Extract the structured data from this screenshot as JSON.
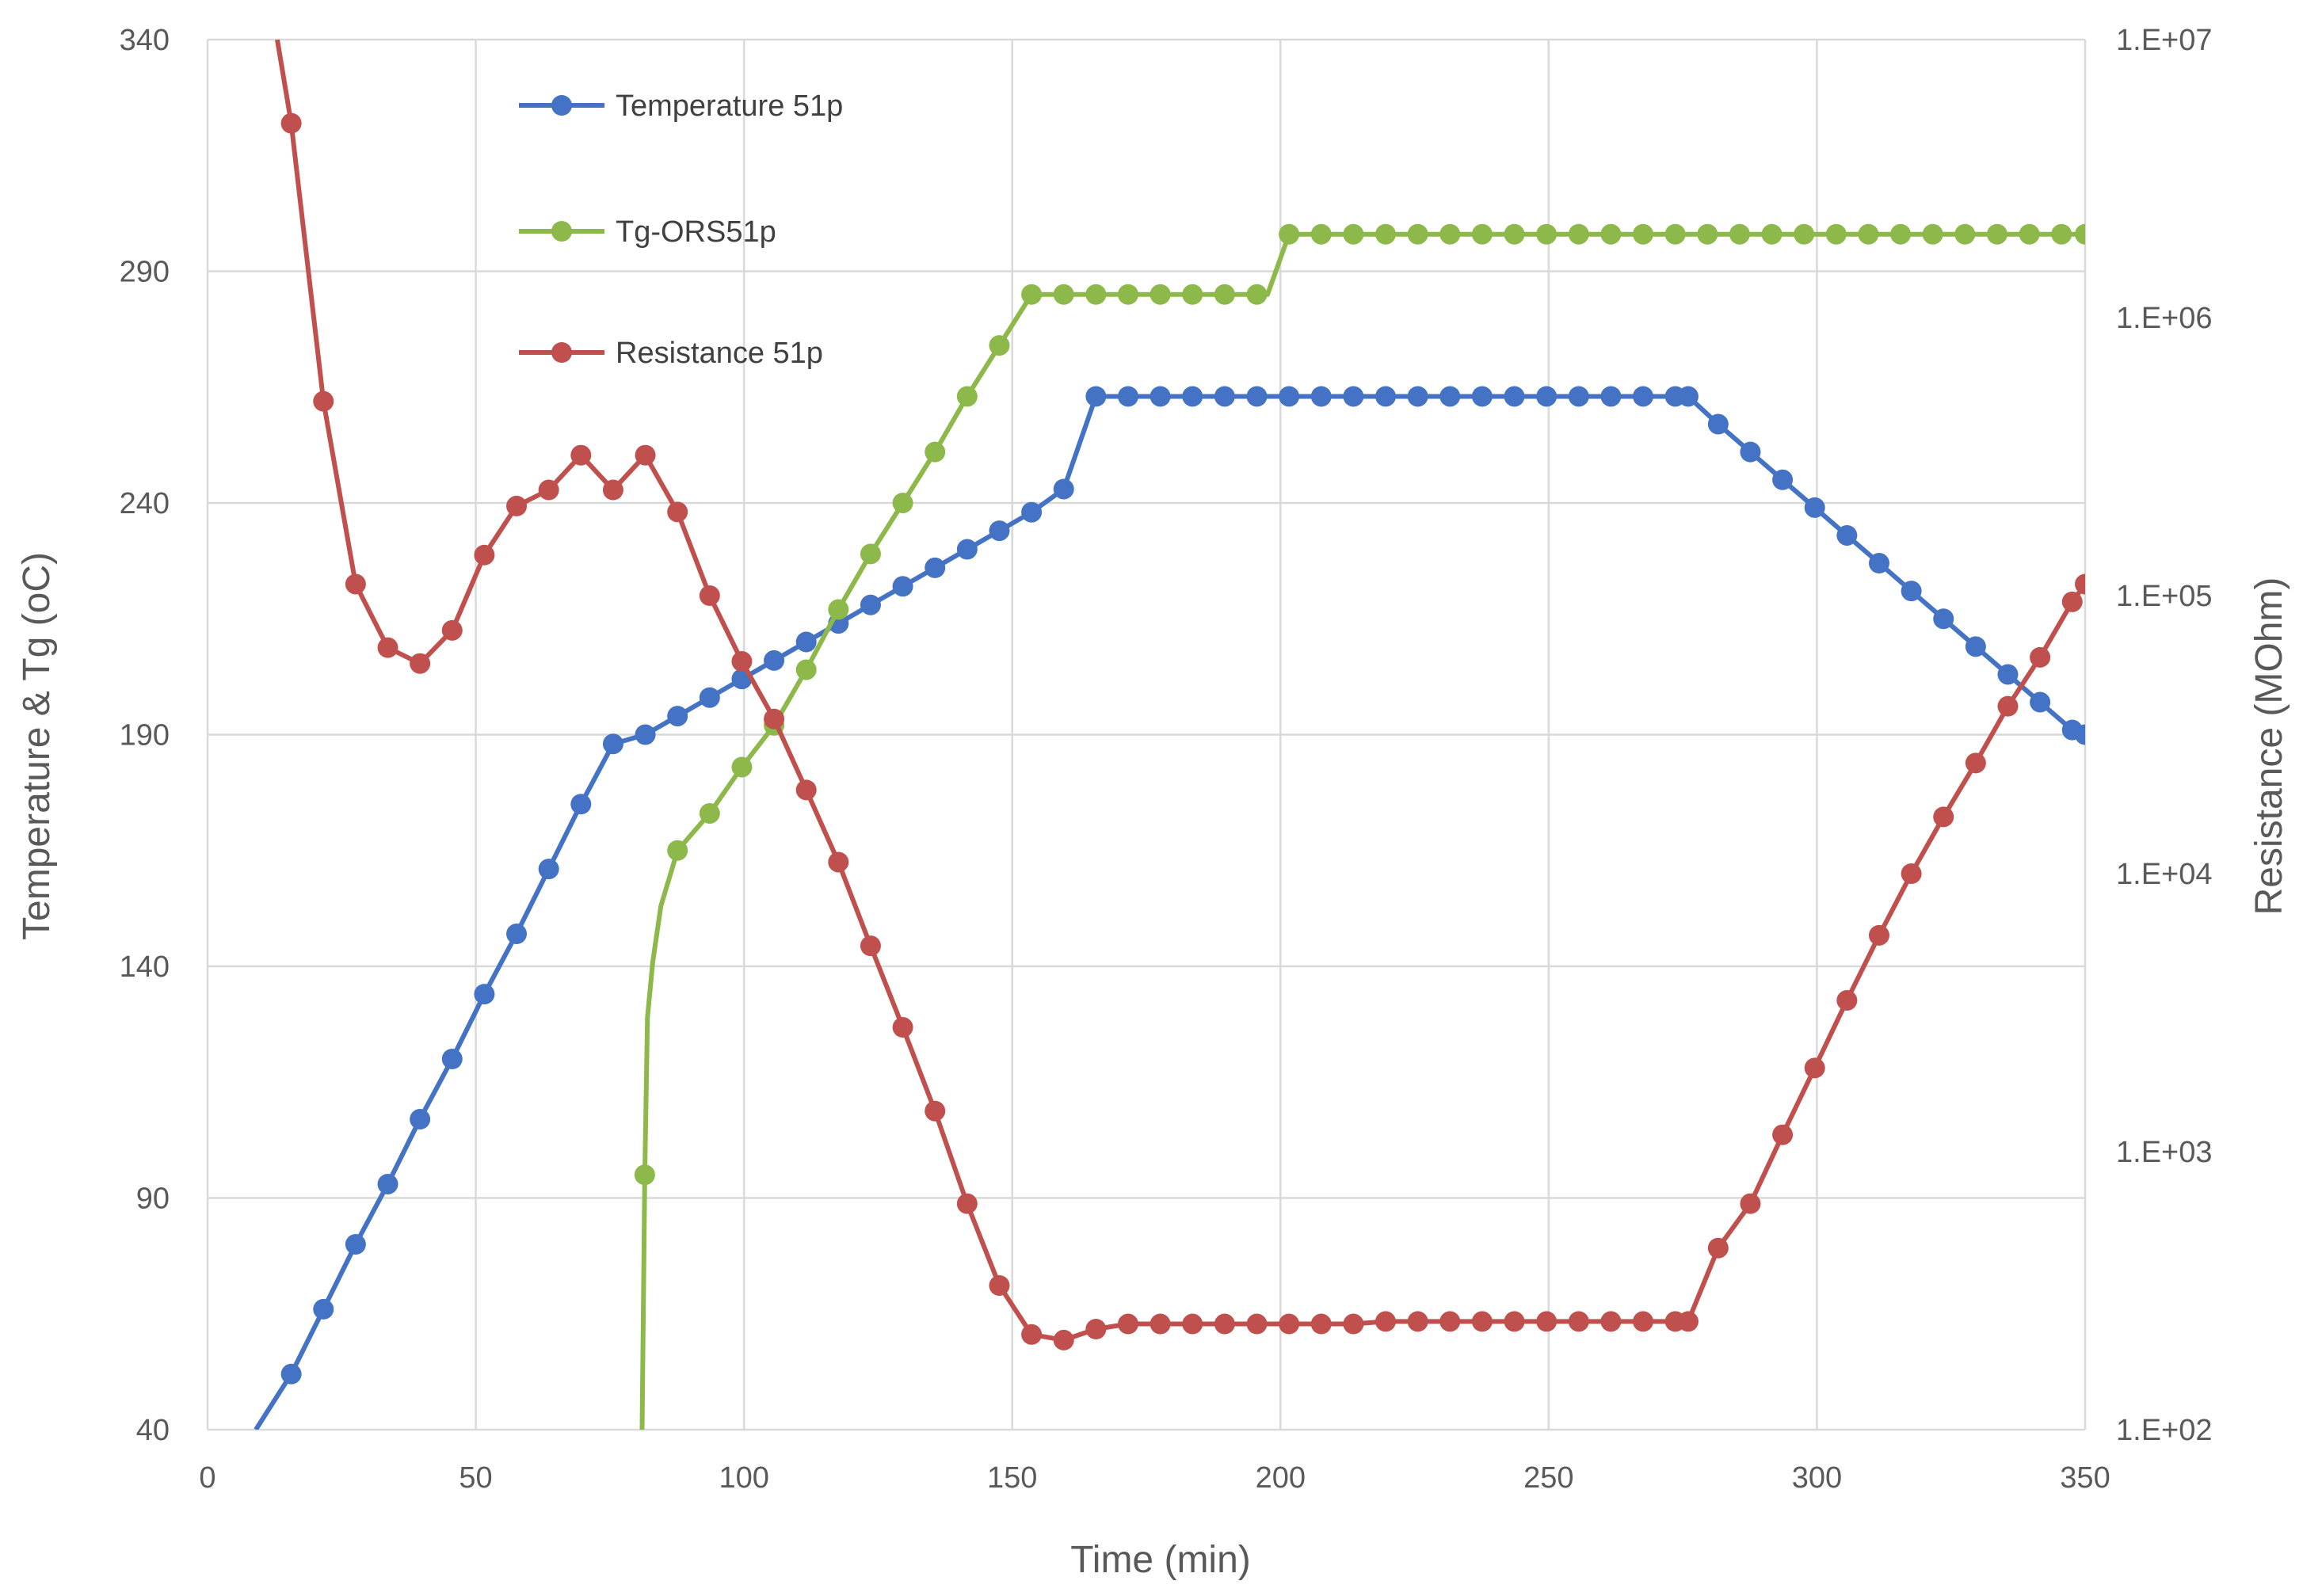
{
  "chart_data": {
    "type": "line",
    "title": "",
    "xlabel": "Time (min)",
    "ylabel": "Temperature & Tg (oC)",
    "y2label": "Resistance (MOhm)",
    "xlim": [
      0,
      350
    ],
    "ylim": [
      40,
      340
    ],
    "y2lim": [
      100,
      10000000
    ],
    "y2scale": "log",
    "x_ticks": [
      0,
      50,
      100,
      150,
      200,
      250,
      300,
      350
    ],
    "y_ticks": [
      40,
      90,
      140,
      190,
      240,
      290,
      340
    ],
    "y2_ticks": [
      "1.E+02",
      "1.E+03",
      "1.E+04",
      "1.E+05",
      "1.E+06",
      "1.E+07"
    ],
    "legend_position": "top-left",
    "grid": true,
    "series": [
      {
        "name": "Temperature 51p",
        "color": "#4472c4",
        "axis": "left",
        "x": [
          9,
          15.6,
          21.6,
          27.6,
          33.6,
          39.6,
          45.6,
          51.6,
          57.6,
          63.6,
          69.6,
          75.6,
          81.6,
          87.6,
          93.6,
          99.6,
          105.6,
          111.6,
          117.6,
          123.6,
          129.6,
          135.6,
          141.6,
          147.6,
          153.6,
          159.6,
          165.6,
          171.6,
          177.6,
          183.6,
          189.6,
          195.6,
          201.6,
          207.6,
          213.6,
          219.6,
          225.6,
          231.6,
          237.6,
          243.6,
          249.6,
          255.6,
          261.6,
          267.6,
          273.6,
          276,
          281.6,
          287.6,
          293.6,
          299.6,
          305.6,
          311.6,
          317.6,
          323.6,
          329.6,
          335.6,
          341.6,
          347.6,
          350
        ],
        "values": [
          40,
          52,
          66,
          80,
          93,
          107,
          120,
          134,
          147,
          161,
          175,
          188,
          190,
          194,
          198,
          202,
          206,
          210,
          214,
          218,
          222,
          226,
          230,
          234,
          238,
          243,
          263,
          263,
          263,
          263,
          263,
          263,
          263,
          263,
          263,
          263,
          263,
          263,
          263,
          263,
          263,
          263,
          263,
          263,
          263,
          263,
          257,
          251,
          245,
          239,
          233,
          227,
          221,
          215,
          209,
          203,
          197,
          191,
          190
        ],
        "marker": "circle",
        "markers_from_index": 1
      },
      {
        "name": "Tg-ORS51p",
        "color": "#8db84a",
        "axis": "left",
        "x": [
          81,
          81.5,
          82,
          83,
          84.5,
          87.6,
          93.6,
          99.6,
          105.6,
          111.6,
          117.6,
          123.6,
          129.6,
          135.6,
          141.6,
          147.6,
          153.6,
          159.6,
          165.6,
          171.6,
          177.6,
          183.6,
          189.6,
          195.6,
          197.6,
          201.6,
          207.6,
          213.6,
          219.6,
          225.6,
          231.6,
          237.6,
          243.6,
          249.6,
          255.6,
          261.6,
          267.6,
          273.6,
          279.6,
          285.6,
          291.6,
          297.6,
          303.6,
          309.6,
          315.6,
          321.6,
          327.6,
          333.6,
          339.6,
          345.6,
          350
        ],
        "values": [
          40,
          95,
          129,
          141,
          153,
          165,
          173,
          183,
          192,
          204,
          217,
          229,
          240,
          251,
          263,
          274,
          285,
          285,
          285,
          285,
          285,
          285,
          285,
          285,
          285,
          298,
          298,
          298,
          298,
          298,
          298,
          298,
          298,
          298,
          298,
          298,
          298,
          298,
          298,
          298,
          298,
          298,
          298,
          298,
          298,
          298,
          298,
          298,
          298,
          298,
          298
        ],
        "marker": "circle",
        "marker_points": [
          81.5,
          87.6,
          93.6,
          99.6,
          105.6,
          111.6,
          117.6,
          123.6,
          129.6,
          135.6,
          141.6,
          147.6,
          153.6,
          159.6,
          165.6,
          171.6,
          177.6,
          183.6,
          189.6,
          195.6,
          201.6,
          207.6,
          213.6,
          219.6,
          225.6,
          231.6,
          237.6,
          243.6,
          249.6,
          255.6,
          261.6,
          267.6,
          273.6,
          279.6,
          285.6,
          291.6,
          297.6,
          303.6,
          309.6,
          315.6,
          321.6,
          327.6,
          333.6,
          339.6,
          345.6,
          350
        ]
      },
      {
        "name": "Resistance 51p",
        "color": "#c0504d",
        "axis": "right",
        "x": [
          13,
          15.6,
          21.6,
          27.6,
          33.6,
          39.6,
          45.6,
          51.6,
          57.6,
          63.6,
          69.6,
          75.6,
          81.6,
          87.6,
          93.6,
          99.6,
          105.6,
          111.6,
          117.6,
          123.6,
          129.6,
          135.6,
          141.6,
          147.6,
          153.6,
          159.6,
          165.6,
          171.6,
          177.6,
          183.6,
          189.6,
          195.6,
          201.6,
          207.6,
          213.6,
          219.6,
          225.6,
          231.6,
          237.6,
          243.6,
          249.6,
          255.6,
          261.6,
          267.6,
          273.6,
          276,
          281.6,
          287.6,
          293.6,
          299.6,
          305.6,
          311.6,
          317.6,
          323.6,
          329.6,
          335.6,
          341.6,
          347.6,
          350
        ],
        "values": [
          10000000,
          5000000,
          500000,
          110000,
          65000,
          57000,
          75000,
          140000,
          210000,
          240000,
          320000,
          240000,
          320000,
          200000,
          100000,
          58000,
          36000,
          20000,
          11000,
          5500,
          2800,
          1400,
          650,
          330,
          220,
          210,
          230,
          240,
          240,
          240,
          240,
          240,
          240,
          240,
          240,
          245,
          245,
          245,
          245,
          245,
          245,
          245,
          245,
          245,
          245,
          245,
          450,
          650,
          1150,
          2000,
          3500,
          6000,
          10000,
          16000,
          25000,
          40000,
          60000,
          95000,
          110000
        ],
        "marker": "circle",
        "markers_from_index": 1
      }
    ]
  }
}
